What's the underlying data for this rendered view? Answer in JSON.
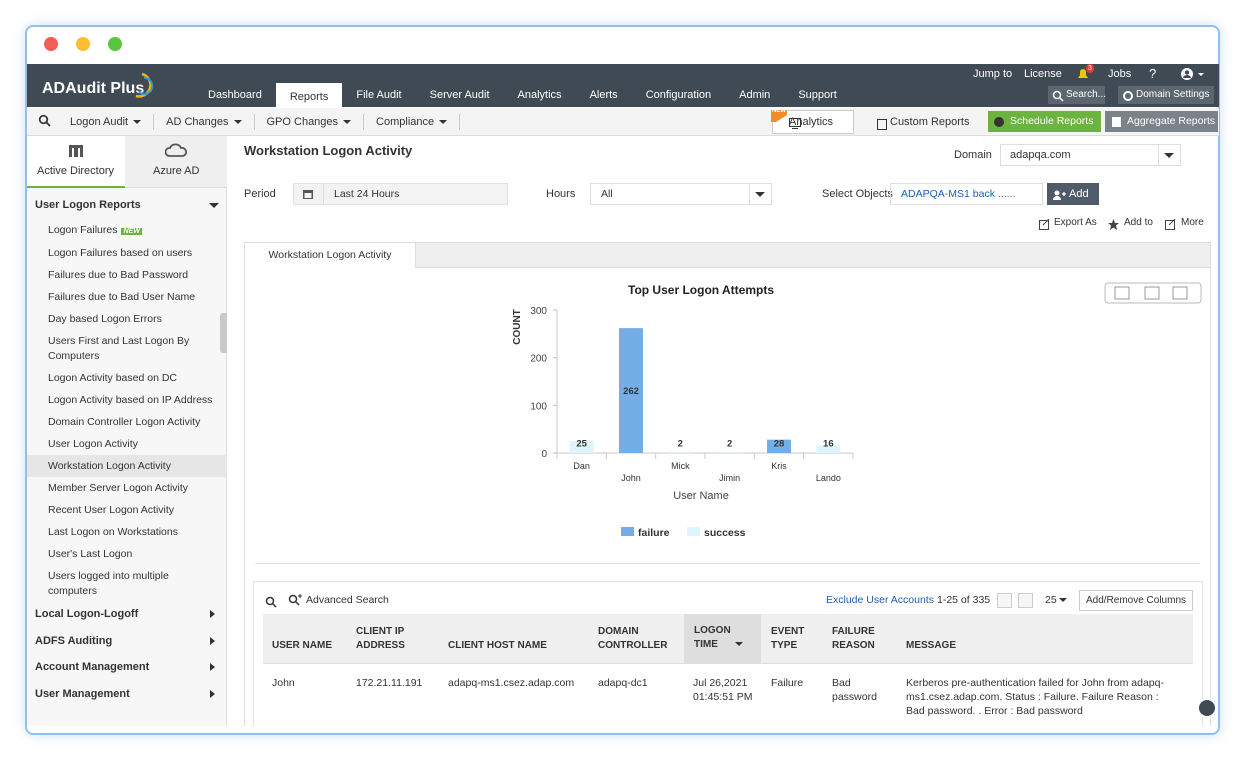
{
  "header": {
    "logo": "ADAudit Plus",
    "tabs": [
      "Dashboard",
      "Reports",
      "File Audit",
      "Server Audit",
      "Analytics",
      "Alerts",
      "Configuration",
      "Admin",
      "Support"
    ],
    "top_links": [
      "Jump to",
      "License",
      "Jobs"
    ],
    "notification_count": "3",
    "help": "?",
    "search": "Search...",
    "domain_settings": "Domain Settings"
  },
  "subnav": {
    "menus": [
      "Logon Audit",
      "AD Changes",
      "GPO Changes",
      "Compliance"
    ],
    "analytics": "Analytics",
    "analytics_badge": "NEW",
    "custom_reports": "Custom Reports",
    "schedule_reports": "Schedule Reports",
    "aggregate_reports": "Aggregate Reports"
  },
  "sidebar": {
    "tabs": [
      "Active Directory",
      "Azure AD"
    ],
    "section": "User Logon Reports",
    "new_badge": "NEW",
    "items": [
      "Logon Failures",
      "Logon Failures based on users",
      "Failures due to Bad Password",
      "Failures due to Bad User Name",
      "Day based Logon Errors",
      "Users First and Last Logon By Computers",
      "Logon Activity based on DC",
      "Logon Activity based on IP Address",
      "Domain Controller Logon Activity",
      "User Logon Activity",
      "Workstation Logon Activity",
      "Member Server Logon Activity",
      "Recent User Logon Activity",
      "Last Logon on Workstations",
      "User's Last Logon",
      "Users logged into multiple computers"
    ],
    "sections": [
      "Local Logon-Logoff",
      "ADFS Auditing",
      "Account Management",
      "User Management"
    ]
  },
  "report": {
    "title": "Workstation Logon Activity",
    "domain_label": "Domain",
    "domain": "adapqa.com",
    "period_label": "Period",
    "period": "Last 24 Hours",
    "hours_label": "Hours",
    "hours": "All",
    "objects_label": "Select Objects",
    "objects": "ADAPQA-MS1 back ......",
    "add": "Add",
    "actions": [
      "Export As",
      "Add to",
      "More"
    ],
    "tab": "Workstation Logon Activity"
  },
  "chart_data": {
    "type": "bar",
    "stacked": true,
    "title": "Top User Logon Attempts",
    "x_label": "User Name",
    "y_label": "COUNT",
    "categories": [
      "Dan",
      "John",
      "Mick",
      "Jimin",
      "Kris",
      "Lando"
    ],
    "series": [
      {
        "name": "failure",
        "color": "#74aee6",
        "values": [
          null,
          262,
          null,
          null,
          28,
          null
        ]
      },
      {
        "name": "success",
        "color": "#dcf6fb",
        "values": [
          25,
          null,
          2,
          2,
          null,
          16
        ]
      }
    ],
    "ylim": [
      0,
      300
    ],
    "yticks": [
      0,
      100,
      200,
      300
    ],
    "legend": "bottom",
    "data_labels": true
  },
  "table": {
    "advanced_search": "Advanced Search",
    "exclude": "Exclude User Accounts",
    "paging": "1-25 of 335",
    "page_size": "25",
    "columns_button": "Add/Remove Columns",
    "headers": [
      "USER NAME",
      "CLIENT IP ADDRESS",
      "CLIENT HOST NAME",
      "DOMAIN CONTROLLER",
      "LOGON TIME",
      "EVENT TYPE",
      "FAILURE REASON",
      "MESSAGE"
    ],
    "rows": [
      [
        "John",
        "172.21.11.191",
        "adapq-ms1.csez.adap.com",
        "adapq-dc1",
        "Jul 26,2021 01:45:51 PM",
        "Failure",
        "Bad password",
        "Kerberos pre-authentication failed for John from adapq-ms1.csez.adap.com. Status : Failure. Failure Reason : Bad password. . Error : Bad password"
      ]
    ]
  }
}
